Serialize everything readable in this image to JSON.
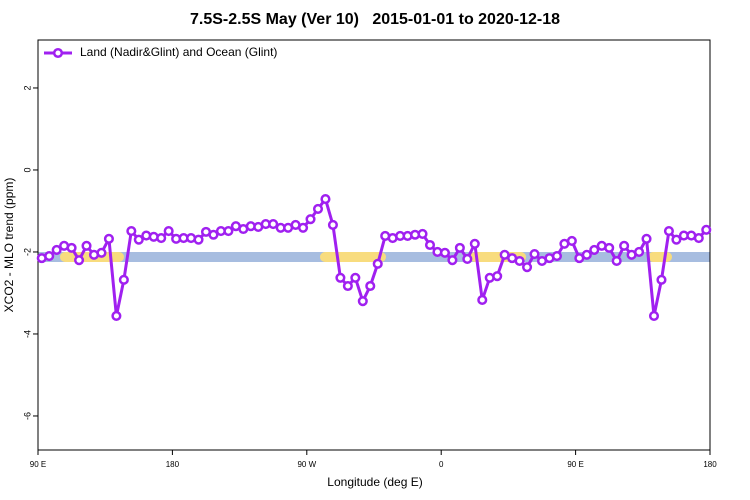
{
  "chart_data": {
    "type": "line",
    "title": "7.5S-2.5S May (Ver 10)   2015-01-01 to 2020-12-18",
    "xlabel": "Longitude (deg E)",
    "ylabel": "XCO2 - MLO trend (ppm)",
    "x": [
      92.5,
      97.5,
      102.5,
      107.5,
      112.5,
      117.5,
      122.5,
      127.5,
      132.5,
      137.5,
      142.5,
      147.5,
      152.5,
      157.5,
      162.5,
      167.5,
      172.5,
      177.5,
      182.5,
      187.5,
      192.5,
      197.5,
      202.5,
      207.5,
      212.5,
      217.5,
      222.5,
      227.5,
      232.5,
      237.5,
      242.5,
      247.5,
      252.5,
      257.5,
      262.5,
      267.5,
      272.5,
      277.5,
      282.5,
      287.5,
      292.5,
      297.5,
      302.5,
      307.5,
      312.5,
      317.5,
      322.5,
      327.5,
      332.5,
      337.5,
      342.5,
      347.5,
      352.5,
      357.5,
      362.5,
      367.5,
      372.5,
      377.5,
      382.5,
      387.5,
      392.5,
      397.5,
      402.5,
      407.5,
      412.5,
      417.5,
      422.5,
      427.5,
      432.5,
      437.5,
      442.5,
      447.5,
      452.5,
      457.5,
      462.5,
      467.5,
      472.5,
      477.5,
      482.5,
      487.5,
      492.5,
      497.5,
      502.5,
      507.5,
      512.5,
      517.5,
      522.5,
      527.5,
      532.5,
      537.5
    ],
    "series": [
      {
        "name": "Land (Nadir&Glint) and Ocean (Glint)",
        "color": "#a020f0",
        "values": [
          -2.15,
          -2.1,
          -1.95,
          -1.85,
          -1.9,
          -2.2,
          -1.85,
          -2.07,
          -2.02,
          -1.68,
          -3.56,
          -2.68,
          -1.49,
          -1.7,
          -1.6,
          -1.63,
          -1.66,
          -1.49,
          -1.68,
          -1.66,
          -1.66,
          -1.7,
          -1.51,
          -1.58,
          -1.49,
          -1.49,
          -1.37,
          -1.44,
          -1.37,
          -1.39,
          -1.32,
          -1.32,
          -1.41,
          -1.41,
          -1.34,
          -1.41,
          -1.2,
          -0.95,
          -0.71,
          -1.34,
          -2.63,
          -2.83,
          -2.63,
          -3.2,
          -2.83,
          -2.29,
          -1.61,
          -1.66,
          -1.61,
          -1.61,
          -1.58,
          -1.56,
          -1.83,
          -2.0,
          -2.02,
          -2.2,
          -1.9,
          -2.17,
          -1.8,
          -3.17,
          -2.63,
          -2.59,
          -2.07,
          -2.15,
          -2.22,
          -2.37,
          -2.05,
          -2.22,
          -2.15,
          -2.1,
          -1.8,
          -1.73,
          -2.15,
          -2.07,
          -1.95,
          -1.85,
          -1.9,
          -2.22,
          -1.85,
          -2.07,
          -2.0,
          -1.68,
          -3.56,
          -2.68,
          -1.49,
          -1.7,
          -1.6,
          -1.6,
          -1.66,
          -1.46
        ]
      }
    ],
    "xlim": [
      90,
      540
    ],
    "xticks": [
      {
        "value": 90,
        "label": "90 E"
      },
      180,
      {
        "value": 270,
        "label": "90 W"
      },
      {
        "value": 360,
        "label": "0"
      },
      {
        "value": 450,
        "label": "90 E"
      },
      {
        "value": 540,
        "label": "180"
      }
    ],
    "ylim": [
      -6.83,
      3.17
    ],
    "yticks": [
      2,
      0,
      -2,
      -4,
      -6
    ],
    "legend": "top-left"
  }
}
